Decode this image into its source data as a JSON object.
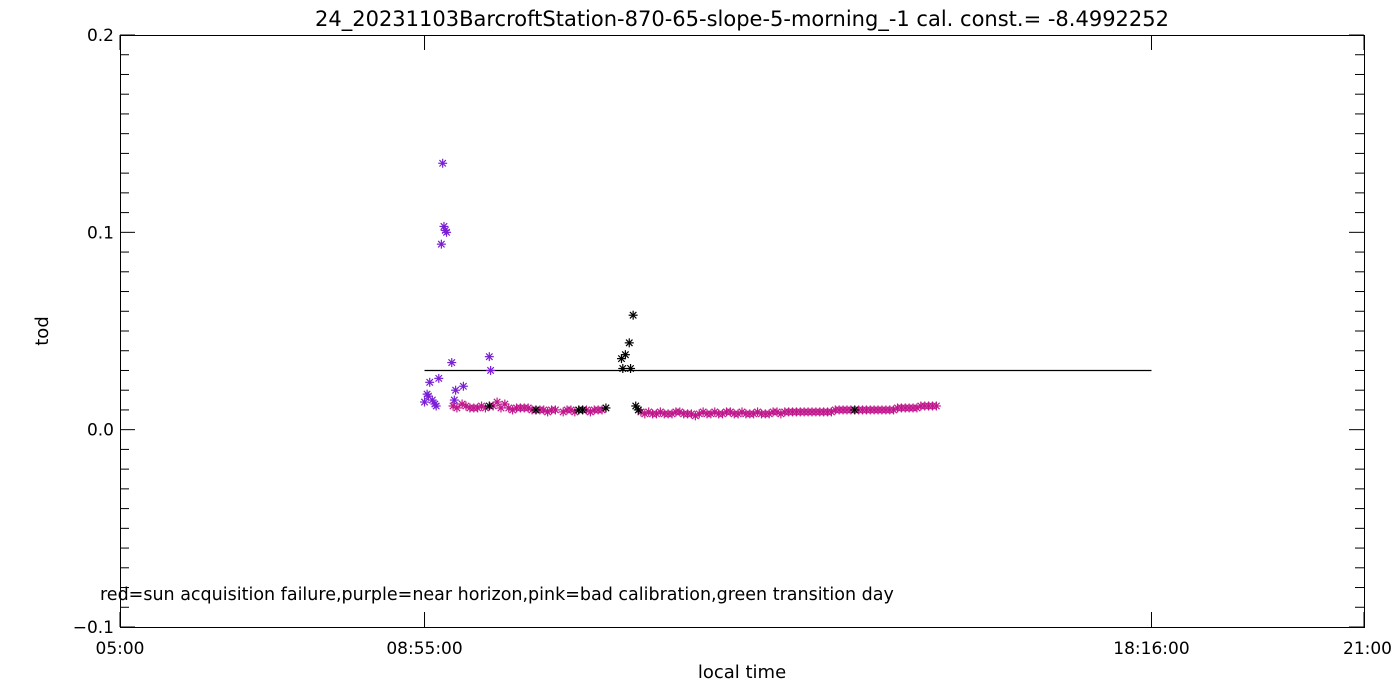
{
  "chart_data": {
    "type": "scatter",
    "title": "24_20231103BarcroftStation-870-65-slope-5-morning_-1 cal. const.= -8.4992252",
    "xlabel": "local time",
    "ylabel": "tod",
    "x_tick_labels": [
      "05:00",
      "08:55:00",
      "18:16:00",
      "21:00"
    ],
    "x_ticks": [
      "05:00",
      "08:55",
      "18:16",
      "21:00"
    ],
    "xlim": [
      "05:00",
      "21:00"
    ],
    "ylim": [
      -0.1,
      0.2
    ],
    "y_ticks": [
      -0.1,
      0.0,
      0.1,
      0.2
    ],
    "y_tick_labels": [
      "−0.1",
      "0.0",
      "0.1",
      "0.2"
    ],
    "annotation": "red=sun acquisition failure,purple=near horizon,pink=bad calibration,green transition day",
    "reference_line": {
      "x": [
        "08:55",
        "18:16"
      ],
      "y": 0.03
    },
    "colors": {
      "normal": "#000000",
      "purple": "#7a1fd6",
      "pink": "#c0168c"
    },
    "series": [
      {
        "color": "purple",
        "points": [
          [
            "08:55",
            0.014
          ],
          [
            "08:57",
            0.018
          ],
          [
            "08:58",
            0.017
          ],
          [
            "08:59",
            0.024
          ],
          [
            "09:01",
            0.015
          ],
          [
            "09:03",
            0.013
          ],
          [
            "09:04",
            0.012
          ],
          [
            "09:06",
            0.026
          ],
          [
            "09:08",
            0.094
          ],
          [
            "09:09",
            0.135
          ],
          [
            "09:10",
            0.103
          ],
          [
            "09:11",
            0.101
          ],
          [
            "09:12",
            0.1
          ],
          [
            "09:16",
            0.034
          ],
          [
            "09:18",
            0.015
          ],
          [
            "09:19",
            0.02
          ],
          [
            "09:25",
            0.022
          ],
          [
            "09:45",
            0.037
          ],
          [
            "09:46",
            0.03
          ]
        ]
      },
      {
        "color": "pink",
        "points": [
          [
            "09:17",
            0.012
          ],
          [
            "09:20",
            0.011
          ],
          [
            "09:24",
            0.013
          ],
          [
            "09:27",
            0.012
          ],
          [
            "09:30",
            0.011
          ],
          [
            "09:33",
            0.011
          ],
          [
            "09:36",
            0.011
          ],
          [
            "09:39",
            0.012
          ],
          [
            "09:42",
            0.011
          ],
          [
            "09:48",
            0.012
          ],
          [
            "09:51",
            0.014
          ],
          [
            "09:54",
            0.011
          ],
          [
            "09:57",
            0.013
          ],
          [
            "10:00",
            0.011
          ],
          [
            "10:03",
            0.01
          ],
          [
            "10:06",
            0.011
          ],
          [
            "10:09",
            0.011
          ],
          [
            "10:12",
            0.011
          ],
          [
            "10:15",
            0.011
          ],
          [
            "10:18",
            0.01
          ],
          [
            "10:24",
            0.01
          ],
          [
            "10:27",
            0.01
          ],
          [
            "10:30",
            0.009
          ],
          [
            "10:33",
            0.01
          ],
          [
            "10:36",
            0.01
          ],
          [
            "10:42",
            0.009
          ],
          [
            "10:45",
            0.01
          ],
          [
            "10:48",
            0.01
          ],
          [
            "10:51",
            0.009
          ],
          [
            "11:00",
            0.01
          ],
          [
            "11:03",
            0.009
          ],
          [
            "11:06",
            0.01
          ],
          [
            "11:09",
            0.01
          ],
          [
            "11:12",
            0.01
          ],
          [
            "11:42",
            0.009
          ],
          [
            "11:45",
            0.008
          ],
          [
            "11:48",
            0.009
          ],
          [
            "11:51",
            0.008
          ],
          [
            "11:54",
            0.008
          ],
          [
            "11:57",
            0.009
          ],
          [
            "12:00",
            0.008
          ],
          [
            "12:03",
            0.008
          ],
          [
            "12:06",
            0.008
          ],
          [
            "12:09",
            0.009
          ],
          [
            "12:12",
            0.009
          ],
          [
            "12:15",
            0.008
          ],
          [
            "12:18",
            0.008
          ],
          [
            "12:21",
            0.008
          ],
          [
            "12:24",
            0.007
          ],
          [
            "12:27",
            0.008
          ],
          [
            "12:30",
            0.009
          ],
          [
            "12:33",
            0.008
          ],
          [
            "12:36",
            0.008
          ],
          [
            "12:39",
            0.009
          ],
          [
            "12:42",
            0.008
          ],
          [
            "12:45",
            0.008
          ],
          [
            "12:48",
            0.009
          ],
          [
            "12:51",
            0.009
          ],
          [
            "12:54",
            0.008
          ],
          [
            "12:57",
            0.008
          ],
          [
            "13:00",
            0.009
          ],
          [
            "13:03",
            0.008
          ],
          [
            "13:06",
            0.008
          ],
          [
            "13:09",
            0.008
          ],
          [
            "13:12",
            0.009
          ],
          [
            "13:15",
            0.008
          ],
          [
            "13:18",
            0.008
          ],
          [
            "13:21",
            0.008
          ],
          [
            "13:24",
            0.009
          ],
          [
            "13:27",
            0.009
          ],
          [
            "13:30",
            0.008
          ],
          [
            "13:33",
            0.009
          ],
          [
            "13:36",
            0.009
          ],
          [
            "13:39",
            0.009
          ],
          [
            "13:42",
            0.009
          ],
          [
            "13:45",
            0.009
          ],
          [
            "13:48",
            0.009
          ],
          [
            "13:51",
            0.009
          ],
          [
            "13:54",
            0.009
          ],
          [
            "13:57",
            0.009
          ],
          [
            "14:00",
            0.009
          ],
          [
            "14:03",
            0.009
          ],
          [
            "14:06",
            0.009
          ],
          [
            "14:09",
            0.009
          ],
          [
            "14:12",
            0.01
          ],
          [
            "14:15",
            0.01
          ],
          [
            "14:18",
            0.01
          ],
          [
            "14:21",
            0.01
          ],
          [
            "14:24",
            0.01
          ],
          [
            "14:30",
            0.01
          ],
          [
            "14:33",
            0.01
          ],
          [
            "14:36",
            0.01
          ],
          [
            "14:39",
            0.01
          ],
          [
            "14:42",
            0.01
          ],
          [
            "14:45",
            0.01
          ],
          [
            "14:48",
            0.01
          ],
          [
            "14:51",
            0.01
          ],
          [
            "14:54",
            0.01
          ],
          [
            "14:57",
            0.01
          ],
          [
            "15:00",
            0.011
          ],
          [
            "15:03",
            0.011
          ],
          [
            "15:06",
            0.011
          ],
          [
            "15:09",
            0.011
          ],
          [
            "15:12",
            0.011
          ],
          [
            "15:15",
            0.011
          ],
          [
            "15:18",
            0.012
          ],
          [
            "15:21",
            0.012
          ],
          [
            "15:24",
            0.012
          ],
          [
            "15:27",
            0.012
          ],
          [
            "15:30",
            0.012
          ]
        ]
      },
      {
        "color": "normal",
        "points": [
          [
            "09:45",
            0.012
          ],
          [
            "10:21",
            0.01
          ],
          [
            "10:54",
            0.01
          ],
          [
            "10:57",
            0.01
          ],
          [
            "11:15",
            0.011
          ],
          [
            "11:27",
            0.036
          ],
          [
            "11:28",
            0.031
          ],
          [
            "11:30",
            0.038
          ],
          [
            "11:33",
            0.044
          ],
          [
            "11:34",
            0.031
          ],
          [
            "11:36",
            0.058
          ],
          [
            "11:38",
            0.012
          ],
          [
            "11:40",
            0.01
          ],
          [
            "14:27",
            0.01
          ]
        ]
      }
    ]
  }
}
